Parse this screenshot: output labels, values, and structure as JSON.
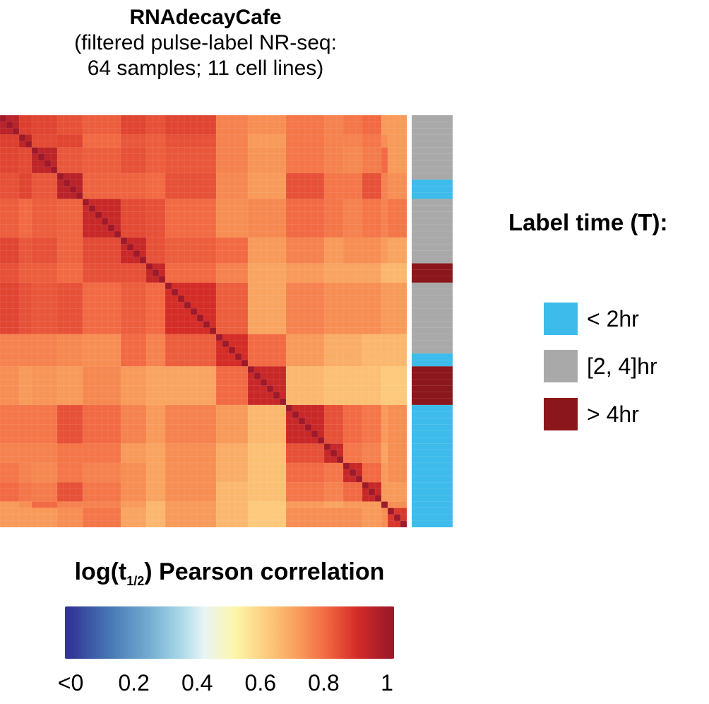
{
  "chart_data": {
    "type": "heatmap",
    "title": "RNAdecayCafe",
    "subtitle_lines": [
      "(filtered pulse-label NR-seq:",
      "64 samples; 11 cell lines)"
    ],
    "n_samples": 64,
    "colorbar": {
      "title_main": "log(t",
      "title_sub": "1/2",
      "title_rest": ") Pearson correlation",
      "range": [
        0,
        1
      ],
      "ticks": [
        {
          "value": 0,
          "label": "<0"
        },
        {
          "value": 0.2,
          "label": "0.2"
        },
        {
          "value": 0.4,
          "label": "0.4"
        },
        {
          "value": 0.6,
          "label": "0.6"
        },
        {
          "value": 0.8,
          "label": "0.8"
        },
        {
          "value": 1,
          "label": "1"
        }
      ],
      "stops": [
        [
          0,
          "#313695"
        ],
        [
          0.12,
          "#4575b4"
        ],
        [
          0.25,
          "#74add1"
        ],
        [
          0.35,
          "#abd9e9"
        ],
        [
          0.42,
          "#e8f4f6"
        ],
        [
          0.52,
          "#fdf6a8"
        ],
        [
          0.63,
          "#fdc578"
        ],
        [
          0.72,
          "#f89a5a"
        ],
        [
          0.8,
          "#f26a43"
        ],
        [
          0.9,
          "#d42c27"
        ],
        [
          1,
          "#9e1a2a"
        ]
      ]
    },
    "cluster_sizes": [
      3,
      2,
      4,
      4,
      6,
      4,
      3,
      8,
      5,
      6,
      6,
      3,
      3,
      3,
      1,
      3
    ],
    "cluster_correlation": [
      [
        0.95,
        0.87,
        0.86,
        0.84,
        0.82,
        0.86,
        0.84,
        0.86,
        0.76,
        0.74,
        0.78,
        0.76,
        0.78,
        0.8,
        0.72,
        0.72
      ],
      [
        0.87,
        0.94,
        0.85,
        0.86,
        0.8,
        0.83,
        0.82,
        0.84,
        0.76,
        0.72,
        0.78,
        0.76,
        0.76,
        0.78,
        0.74,
        0.72
      ],
      [
        0.86,
        0.85,
        0.94,
        0.83,
        0.82,
        0.84,
        0.82,
        0.83,
        0.76,
        0.73,
        0.78,
        0.76,
        0.75,
        0.77,
        0.8,
        0.72
      ],
      [
        0.84,
        0.86,
        0.83,
        0.95,
        0.81,
        0.81,
        0.8,
        0.84,
        0.75,
        0.72,
        0.84,
        0.78,
        0.78,
        0.84,
        0.76,
        0.74
      ],
      [
        0.82,
        0.8,
        0.82,
        0.81,
        0.92,
        0.85,
        0.84,
        0.8,
        0.74,
        0.75,
        0.8,
        0.78,
        0.76,
        0.78,
        0.76,
        0.78
      ],
      [
        0.86,
        0.83,
        0.84,
        0.81,
        0.85,
        0.92,
        0.84,
        0.82,
        0.8,
        0.72,
        0.76,
        0.72,
        0.74,
        0.74,
        0.72,
        0.7
      ],
      [
        0.84,
        0.82,
        0.82,
        0.8,
        0.84,
        0.84,
        0.93,
        0.8,
        0.76,
        0.7,
        0.72,
        0.7,
        0.7,
        0.7,
        0.66,
        0.66
      ],
      [
        0.86,
        0.84,
        0.83,
        0.84,
        0.8,
        0.82,
        0.8,
        0.9,
        0.82,
        0.7,
        0.76,
        0.74,
        0.74,
        0.74,
        0.72,
        0.72
      ],
      [
        0.76,
        0.76,
        0.76,
        0.75,
        0.74,
        0.8,
        0.76,
        0.82,
        0.9,
        0.8,
        0.72,
        0.68,
        0.68,
        0.66,
        0.66,
        0.66
      ],
      [
        0.74,
        0.72,
        0.73,
        0.72,
        0.75,
        0.72,
        0.7,
        0.7,
        0.8,
        0.92,
        0.66,
        0.64,
        0.64,
        0.64,
        0.62,
        0.62
      ],
      [
        0.78,
        0.78,
        0.78,
        0.84,
        0.8,
        0.76,
        0.72,
        0.76,
        0.72,
        0.66,
        0.92,
        0.84,
        0.8,
        0.78,
        0.72,
        0.74
      ],
      [
        0.76,
        0.76,
        0.76,
        0.78,
        0.78,
        0.72,
        0.7,
        0.74,
        0.68,
        0.64,
        0.84,
        0.92,
        0.78,
        0.76,
        0.7,
        0.74
      ],
      [
        0.78,
        0.76,
        0.75,
        0.78,
        0.76,
        0.74,
        0.7,
        0.74,
        0.68,
        0.64,
        0.8,
        0.78,
        0.92,
        0.8,
        0.72,
        0.74
      ],
      [
        0.8,
        0.78,
        0.77,
        0.84,
        0.78,
        0.74,
        0.7,
        0.74,
        0.66,
        0.64,
        0.78,
        0.76,
        0.8,
        0.92,
        0.72,
        0.72
      ],
      [
        0.72,
        0.74,
        0.8,
        0.76,
        0.76,
        0.72,
        0.66,
        0.72,
        0.66,
        0.62,
        0.72,
        0.7,
        0.72,
        0.72,
        1.0,
        0.74
      ],
      [
        0.72,
        0.72,
        0.72,
        0.74,
        0.78,
        0.7,
        0.66,
        0.72,
        0.66,
        0.62,
        0.74,
        0.74,
        0.74,
        0.72,
        0.74,
        0.88
      ]
    ],
    "annotation": {
      "title": "Label time (T):",
      "groups": [
        {
          "label": "< 2hr",
          "color": "#3dbbea"
        },
        {
          "label": "[2, 4]hr",
          "color": "#a9a9a9"
        },
        {
          "label": "> 4hr",
          "color": "#8b161b"
        }
      ],
      "sample_runs": [
        {
          "group": 1,
          "count": 10
        },
        {
          "group": 0,
          "count": 3
        },
        {
          "group": 1,
          "count": 10
        },
        {
          "group": 2,
          "count": 3
        },
        {
          "group": 1,
          "count": 11
        },
        {
          "group": 0,
          "count": 2
        },
        {
          "group": 2,
          "count": 6
        },
        {
          "group": 0,
          "count": 19
        }
      ]
    }
  }
}
